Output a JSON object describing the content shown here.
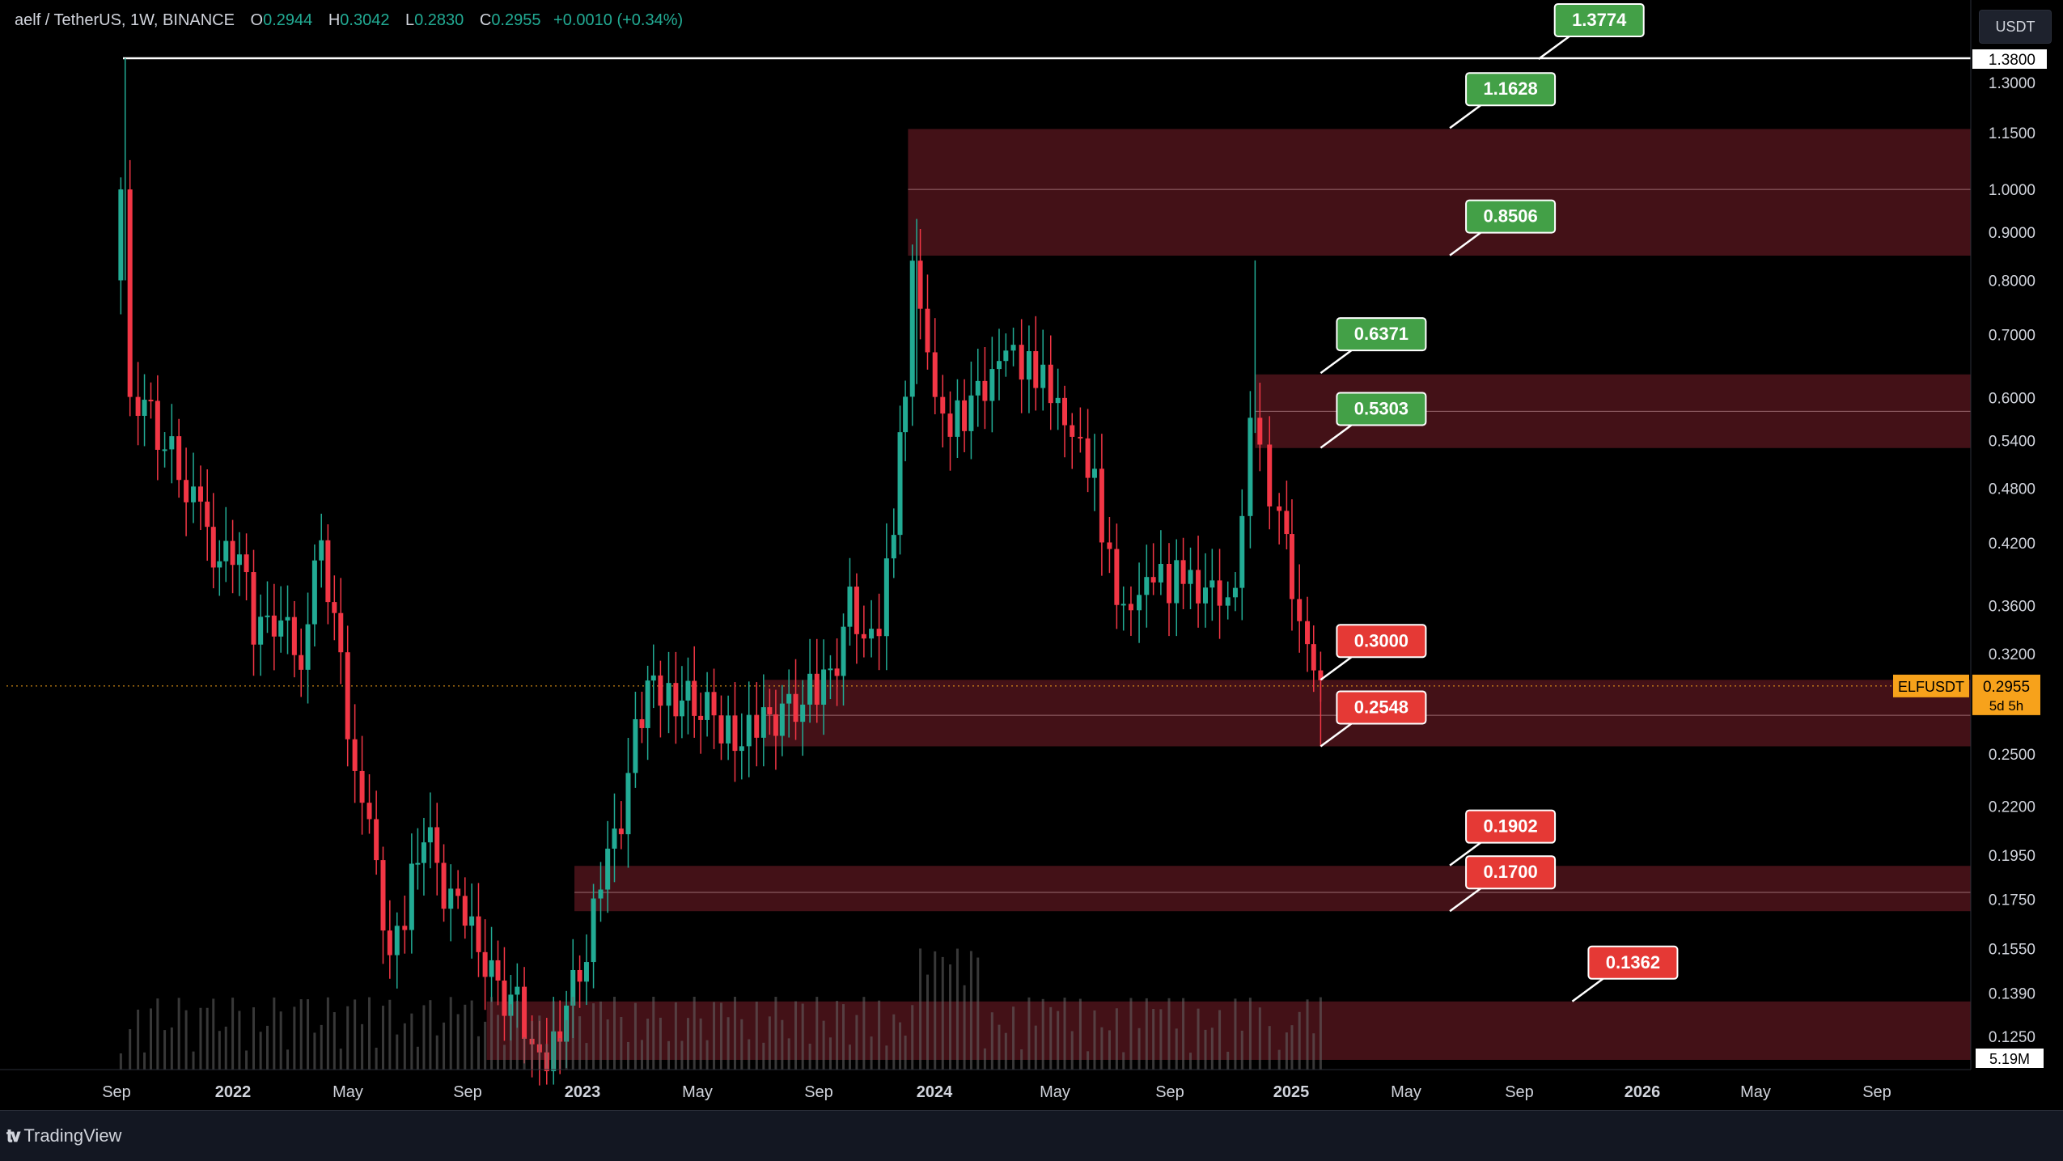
{
  "header": {
    "symbol": "aelf / TetherUS, 1W, BINANCE",
    "open_label": "O",
    "open": "0.2944",
    "high_label": "H",
    "high": "0.3042",
    "low_label": "L",
    "low": "0.2830",
    "close_label": "C",
    "close": "0.2955",
    "change": "+0.0010 (+0.34%)"
  },
  "currency_button": "USDT",
  "footer": {
    "brand": "TradingView"
  },
  "colors": {
    "up": "#22ab94",
    "down": "#f23645",
    "zone": "#4a1319",
    "bg": "#000000",
    "label_green": "#43a047",
    "label_red": "#e53935",
    "price_tag": "#f7a21b"
  },
  "chart_data": {
    "type": "candlestick",
    "scale": "log",
    "symbol_tag": "ELFUSDT",
    "current_price": "0.2955",
    "countdown": "5d 5h",
    "volume_tag": "5.19M",
    "top_line_label": "1.3800",
    "y_ticks": [
      "1.3000",
      "1.1500",
      "1.0000",
      "0.9000",
      "0.8000",
      "0.7000",
      "0.6000",
      "0.5400",
      "0.4800",
      "0.4200",
      "0.3600",
      "0.3200",
      "0.2500",
      "0.2200",
      "0.1950",
      "0.1750",
      "0.1550",
      "0.1390",
      "0.1250"
    ],
    "x_ticks": [
      "Sep",
      "2022",
      "May",
      "Sep",
      "2023",
      "May",
      "Sep",
      "2024",
      "May",
      "Sep",
      "2025",
      "May",
      "Sep",
      "2026",
      "May",
      "Sep"
    ],
    "zones": [
      {
        "from": "2023-12-01",
        "top": 1.16,
        "bottom": 0.85,
        "mid": 1.0
      },
      {
        "from": "2024-11-25",
        "top": 0.635,
        "bottom": 0.53,
        "mid": 0.58
      },
      {
        "from": "2023-07-05",
        "top": 0.3,
        "bottom": 0.2548,
        "mid": 0.275
      },
      {
        "from": "2022-12-20",
        "top": 0.19,
        "bottom": 0.17,
        "mid": 0.178
      },
      {
        "from": "2022-09-20",
        "top": 0.1362,
        "bottom": 0.118,
        "mid": null
      }
    ],
    "levels": [
      {
        "value": "1.3774",
        "color": "green",
        "anchor": "2025-09-15"
      },
      {
        "value": "1.1628",
        "color": "green",
        "anchor": "2025-06-15"
      },
      {
        "value": "0.8506",
        "color": "green",
        "anchor": "2025-06-15"
      },
      {
        "value": "0.6371",
        "color": "green",
        "anchor": "2025-02-01"
      },
      {
        "value": "0.5303",
        "color": "green",
        "anchor": "2025-02-01"
      },
      {
        "value": "0.3000",
        "color": "red",
        "anchor": "2025-02-01"
      },
      {
        "value": "0.2548",
        "color": "red",
        "anchor": "2025-02-01"
      },
      {
        "value": "0.1902",
        "color": "red",
        "anchor": "2025-06-15"
      },
      {
        "value": "0.1700",
        "color": "red",
        "anchor": "2025-06-15"
      },
      {
        "value": "0.1362",
        "color": "red",
        "anchor": "2025-10-20"
      }
    ],
    "price_path": [
      [
        "2021-09-01",
        0.8
      ],
      [
        "2021-09-10",
        1.0
      ],
      [
        "2021-09-20",
        0.62
      ],
      [
        "2021-10-10",
        0.57
      ],
      [
        "2021-11-01",
        0.52
      ],
      [
        "2021-12-01",
        0.45
      ],
      [
        "2021-12-20",
        0.4
      ],
      [
        "2022-01-10",
        0.42
      ],
      [
        "2022-01-25",
        0.33
      ],
      [
        "2022-02-15",
        0.35
      ],
      [
        "2022-03-15",
        0.32
      ],
      [
        "2022-04-05",
        0.42
      ],
      [
        "2022-04-25",
        0.31
      ],
      [
        "2022-05-10",
        0.24
      ],
      [
        "2022-05-25",
        0.22
      ],
      [
        "2022-06-15",
        0.15
      ],
      [
        "2022-07-01",
        0.17
      ],
      [
        "2022-07-20",
        0.21
      ],
      [
        "2022-08-10",
        0.18
      ],
      [
        "2022-08-25",
        0.17
      ],
      [
        "2022-09-15",
        0.155
      ],
      [
        "2022-10-05",
        0.14
      ],
      [
        "2022-10-25",
        0.135
      ],
      [
        "2022-11-10",
        0.125
      ],
      [
        "2022-11-25",
        0.12
      ],
      [
        "2022-12-15",
        0.135
      ],
      [
        "2023-01-05",
        0.155
      ],
      [
        "2023-01-20",
        0.18
      ],
      [
        "2023-02-10",
        0.215
      ],
      [
        "2023-02-25",
        0.26
      ],
      [
        "2023-03-15",
        0.3
      ],
      [
        "2023-04-01",
        0.29
      ],
      [
        "2023-04-20",
        0.285
      ],
      [
        "2023-05-10",
        0.28
      ],
      [
        "2023-05-25",
        0.27
      ],
      [
        "2023-06-15",
        0.26
      ],
      [
        "2023-07-01",
        0.265
      ],
      [
        "2023-07-20",
        0.275
      ],
      [
        "2023-08-10",
        0.28
      ],
      [
        "2023-08-25",
        0.29
      ],
      [
        "2023-09-15",
        0.3
      ],
      [
        "2023-10-05",
        0.36
      ],
      [
        "2023-10-20",
        0.34
      ],
      [
        "2023-11-05",
        0.35
      ],
      [
        "2023-11-20",
        0.45
      ],
      [
        "2023-12-01",
        0.62
      ],
      [
        "2023-12-10",
        0.8
      ],
      [
        "2023-12-25",
        0.65
      ],
      [
        "2024-01-10",
        0.55
      ],
      [
        "2024-01-25",
        0.57
      ],
      [
        "2024-02-15",
        0.6
      ],
      [
        "2024-03-01",
        0.65
      ],
      [
        "2024-03-15",
        0.7
      ],
      [
        "2024-04-01",
        0.66
      ],
      [
        "2024-04-15",
        0.64
      ],
      [
        "2024-05-01",
        0.6
      ],
      [
        "2024-05-15",
        0.55
      ],
      [
        "2024-06-01",
        0.52
      ],
      [
        "2024-06-15",
        0.48
      ],
      [
        "2024-07-01",
        0.4
      ],
      [
        "2024-07-15",
        0.36
      ],
      [
        "2024-08-01",
        0.38
      ],
      [
        "2024-08-15",
        0.4
      ],
      [
        "2024-09-01",
        0.38
      ],
      [
        "2024-09-15",
        0.39
      ],
      [
        "2024-10-01",
        0.36
      ],
      [
        "2024-10-15",
        0.37
      ],
      [
        "2024-11-01",
        0.35
      ],
      [
        "2024-11-15",
        0.43
      ],
      [
        "2024-11-25",
        0.6
      ],
      [
        "2024-12-05",
        0.56
      ],
      [
        "2024-12-15",
        0.47
      ],
      [
        "2024-12-25",
        0.45
      ],
      [
        "2025-01-05",
        0.38
      ],
      [
        "2025-01-15",
        0.33
      ],
      [
        "2025-01-28",
        0.3
      ],
      [
        "2025-02-05",
        0.2955
      ]
    ]
  }
}
